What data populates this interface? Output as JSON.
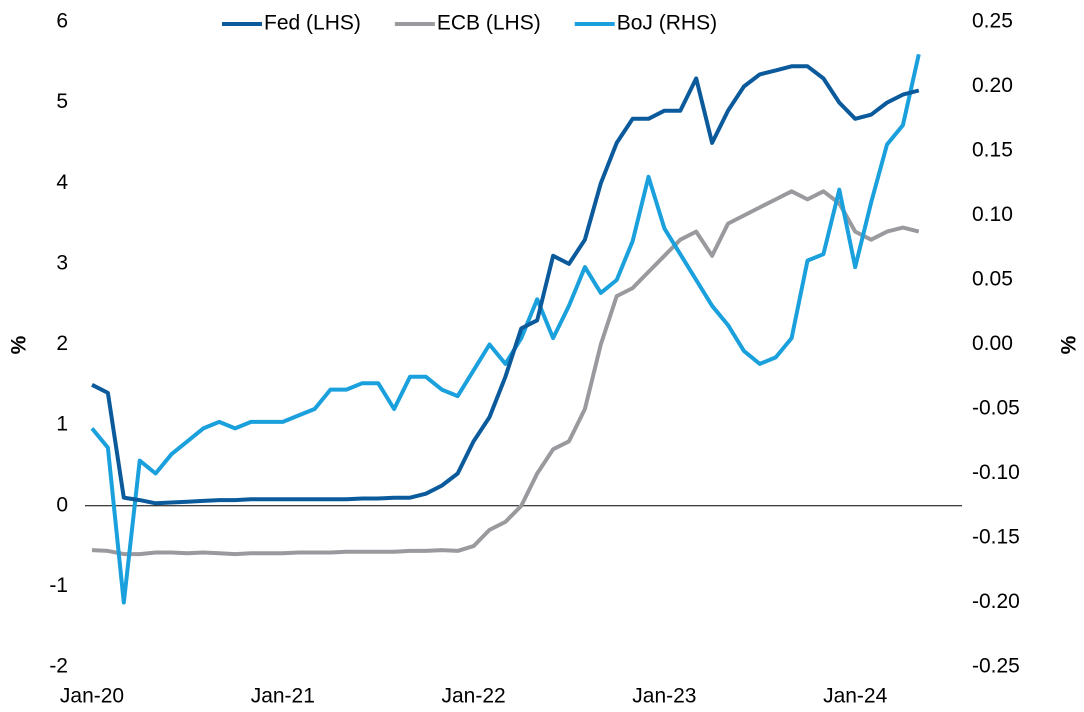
{
  "chart_data": {
    "type": "line",
    "categories": [
      "Jan-20",
      null,
      null,
      null,
      null,
      null,
      null,
      null,
      null,
      null,
      null,
      null,
      "Jan-21",
      null,
      null,
      null,
      null,
      null,
      null,
      null,
      null,
      null,
      null,
      null,
      "Jan-22",
      null,
      null,
      null,
      null,
      null,
      null,
      null,
      null,
      null,
      null,
      null,
      "Jan-23",
      null,
      null,
      null,
      null,
      null,
      null,
      null,
      null,
      null,
      null,
      null,
      "Jan-24",
      null,
      null,
      null,
      null
    ],
    "series": [
      {
        "name": "Fed (LHS)",
        "color": "#0a5a9c",
        "values": [
          1.5,
          1.4,
          0.1,
          0.07,
          0.03,
          0.04,
          0.05,
          0.06,
          0.07,
          0.07,
          0.08,
          0.08,
          0.08,
          0.08,
          0.08,
          0.08,
          0.08,
          0.09,
          0.09,
          0.1,
          0.1,
          0.15,
          0.25,
          0.4,
          0.8,
          1.1,
          1.6,
          2.2,
          2.3,
          3.1,
          3.0,
          3.3,
          4.0,
          4.5,
          4.8,
          4.8,
          4.9,
          4.9,
          5.3,
          4.5,
          4.9,
          5.2,
          5.35,
          5.4,
          5.45,
          5.45,
          5.3,
          5.0,
          4.8,
          4.85,
          5.0,
          5.1,
          5.15
        ]
      },
      {
        "name": "ECB (LHS)",
        "color": "#9a9a9e",
        "values": [
          -0.55,
          -0.56,
          -0.6,
          -0.6,
          -0.58,
          -0.58,
          -0.59,
          -0.58,
          -0.59,
          -0.6,
          -0.59,
          -0.59,
          -0.59,
          -0.58,
          -0.58,
          -0.58,
          -0.57,
          -0.57,
          -0.57,
          -0.57,
          -0.56,
          -0.56,
          -0.55,
          -0.56,
          -0.5,
          -0.3,
          -0.2,
          0.0,
          0.4,
          0.7,
          0.8,
          1.2,
          2.0,
          2.6,
          2.7,
          2.9,
          3.1,
          3.3,
          3.4,
          3.1,
          3.5,
          3.6,
          3.7,
          3.8,
          3.9,
          3.8,
          3.9,
          3.75,
          3.4,
          3.3,
          3.4,
          3.45,
          3.4
        ]
      },
      {
        "name": "BoJ (RHS)",
        "color": "#1aa0dc",
        "axis": "y2",
        "values": [
          -0.065,
          -0.08,
          -0.2,
          -0.09,
          -0.1,
          -0.085,
          -0.075,
          -0.065,
          -0.06,
          -0.065,
          -0.06,
          -0.06,
          -0.06,
          -0.055,
          -0.05,
          -0.035,
          -0.035,
          -0.03,
          -0.03,
          -0.05,
          -0.025,
          -0.025,
          -0.035,
          -0.04,
          -0.02,
          0.0,
          -0.015,
          0.005,
          0.035,
          0.005,
          0.03,
          0.06,
          0.04,
          0.05,
          0.08,
          0.13,
          0.09,
          0.07,
          0.05,
          0.03,
          0.015,
          -0.005,
          -0.015,
          -0.01,
          0.005,
          0.065,
          0.07,
          0.12,
          0.06,
          0.11,
          0.155,
          0.17,
          0.225
        ]
      }
    ],
    "ylim": [
      -2,
      6
    ],
    "yticks": [
      -2,
      -1,
      0,
      1,
      2,
      3,
      4,
      5,
      6
    ],
    "y2lim": [
      -0.25,
      0.25
    ],
    "y2ticks": [
      {
        "value": -0.25,
        "label": "-0.25"
      },
      {
        "value": -0.2,
        "label": "-0.20"
      },
      {
        "value": -0.15,
        "label": "-0.15"
      },
      {
        "value": -0.1,
        "label": "-0.10"
      },
      {
        "value": -0.05,
        "label": "-0.05"
      },
      {
        "value": 0,
        "label": "0.00"
      },
      {
        "value": 0.05,
        "label": "0.05"
      },
      {
        "value": 0.1,
        "label": "0.10"
      },
      {
        "value": 0.15,
        "label": "0.15"
      },
      {
        "value": 0.2,
        "label": "0.20"
      },
      {
        "value": 0.25,
        "label": "0.25"
      }
    ],
    "ylabel": "%",
    "y2label": "%",
    "legend": "top"
  }
}
